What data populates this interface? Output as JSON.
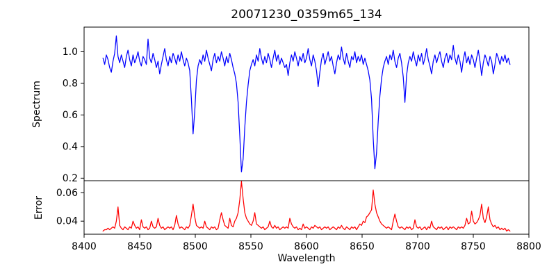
{
  "figure": {
    "background": "#ffffff",
    "text_color": "#000000"
  },
  "chart_data": {
    "type": "line",
    "title": "20071230_0359m65_134",
    "xlabel": "Wavelength",
    "grid": false,
    "legend": "none",
    "xlim": [
      8400,
      8800
    ],
    "xticks": [
      8400,
      8450,
      8500,
      8550,
      8600,
      8650,
      8700,
      8750,
      8800
    ],
    "xtick_labels": [
      "8400",
      "8450",
      "8500",
      "8550",
      "8600",
      "8650",
      "8700",
      "8750",
      "8800"
    ],
    "x_start": 8417,
    "x_step": 1.5,
    "panels": [
      {
        "name": "spectrum",
        "ylabel": "Spectrum",
        "ylim": [
          0.184,
          1.156
        ],
        "yticks": [
          0.2,
          0.4,
          0.6,
          0.8,
          1.0
        ],
        "ytick_labels": [
          "0.2",
          "0.4",
          "0.6",
          "0.8",
          "1.0"
        ],
        "color": "#0000ff",
        "features": "absorption lines near 8498, 8542, 8611, 8662, 8688; continuum ~0.95",
        "values": [
          0.96,
          0.92,
          0.98,
          0.95,
          0.9,
          0.87,
          0.94,
          0.99,
          1.1,
          0.97,
          0.93,
          0.98,
          0.94,
          0.9,
          0.97,
          1.01,
          0.95,
          0.91,
          0.98,
          0.93,
          0.96,
          1.0,
          0.94,
          0.91,
          0.97,
          0.95,
          0.92,
          1.08,
          0.96,
          0.93,
          0.99,
          0.95,
          0.9,
          0.94,
          0.86,
          0.92,
          0.97,
          1.02,
          0.95,
          0.91,
          0.97,
          0.93,
          0.99,
          0.96,
          0.92,
          0.98,
          0.94,
          1.0,
          0.95,
          0.91,
          0.96,
          0.93,
          0.88,
          0.7,
          0.48,
          0.62,
          0.82,
          0.91,
          0.95,
          0.92,
          0.98,
          0.94,
          1.01,
          0.96,
          0.92,
          0.88,
          0.95,
          0.99,
          0.93,
          0.97,
          0.94,
          1.0,
          0.96,
          0.91,
          0.97,
          0.93,
          0.99,
          0.95,
          0.9,
          0.86,
          0.8,
          0.68,
          0.47,
          0.24,
          0.32,
          0.52,
          0.68,
          0.79,
          0.88,
          0.92,
          0.95,
          0.91,
          0.98,
          0.94,
          1.02,
          0.96,
          0.92,
          0.97,
          0.93,
          0.99,
          0.95,
          0.9,
          0.96,
          1.01,
          0.94,
          0.98,
          0.92,
          0.96,
          0.93,
          0.9,
          0.92,
          0.85,
          0.93,
          0.98,
          0.94,
          1.0,
          0.96,
          0.91,
          0.97,
          0.94,
          0.99,
          0.93,
          0.96,
          1.02,
          0.95,
          0.91,
          0.98,
          0.94,
          0.88,
          0.78,
          0.87,
          0.95,
          0.99,
          0.92,
          0.96,
          1.0,
          0.94,
          0.97,
          0.91,
          0.86,
          0.93,
          0.98,
          0.95,
          1.03,
          0.96,
          0.92,
          0.99,
          0.94,
          0.9,
          0.97,
          0.95,
          1.0,
          0.93,
          0.97,
          0.94,
          0.98,
          0.92,
          0.96,
          0.92,
          0.88,
          0.82,
          0.7,
          0.45,
          0.26,
          0.36,
          0.56,
          0.72,
          0.83,
          0.9,
          0.94,
          0.97,
          0.92,
          0.98,
          0.95,
          1.01,
          0.94,
          0.9,
          0.96,
          0.99,
          0.93,
          0.84,
          0.68,
          0.85,
          0.93,
          0.97,
          0.94,
          1.0,
          0.95,
          0.91,
          0.98,
          0.94,
          0.99,
          0.92,
          0.96,
          1.02,
          0.95,
          0.91,
          0.86,
          0.94,
          0.98,
          0.93,
          0.97,
          1.0,
          0.94,
          0.9,
          0.96,
          0.99,
          0.93,
          0.98,
          0.95,
          1.04,
          0.96,
          0.92,
          0.98,
          0.94,
          0.87,
          0.95,
          1.0,
          0.93,
          0.97,
          0.92,
          0.98,
          0.95,
          0.9,
          0.96,
          1.01,
          0.94,
          0.85,
          0.93,
          0.98,
          0.95,
          0.91,
          0.97,
          0.94,
          0.86,
          0.92,
          0.99,
          0.96,
          0.92,
          0.97,
          0.94,
          0.98,
          0.93,
          0.96,
          0.92
        ]
      },
      {
        "name": "error",
        "ylabel": "Error",
        "ylim": [
          0.0308,
          0.0685
        ],
        "yticks": [
          0.04,
          0.06
        ],
        "ytick_labels": [
          "0.04",
          "0.06"
        ],
        "color": "#ff0000",
        "features": "baseline ~0.035; peaks near 8430, 8498, 8541 (0.068), 8660 (0.062), 8750-8764",
        "values": [
          0.033,
          0.034,
          0.034,
          0.035,
          0.034,
          0.035,
          0.036,
          0.035,
          0.04,
          0.05,
          0.037,
          0.035,
          0.034,
          0.036,
          0.035,
          0.034,
          0.036,
          0.035,
          0.04,
          0.037,
          0.035,
          0.036,
          0.034,
          0.041,
          0.036,
          0.035,
          0.036,
          0.034,
          0.035,
          0.04,
          0.036,
          0.035,
          0.036,
          0.042,
          0.037,
          0.035,
          0.036,
          0.034,
          0.035,
          0.036,
          0.035,
          0.036,
          0.034,
          0.037,
          0.044,
          0.038,
          0.035,
          0.036,
          0.035,
          0.034,
          0.036,
          0.035,
          0.037,
          0.044,
          0.052,
          0.043,
          0.037,
          0.036,
          0.035,
          0.036,
          0.035,
          0.04,
          0.036,
          0.035,
          0.034,
          0.036,
          0.035,
          0.036,
          0.034,
          0.035,
          0.041,
          0.046,
          0.041,
          0.037,
          0.036,
          0.035,
          0.042,
          0.037,
          0.036,
          0.04,
          0.042,
          0.046,
          0.055,
          0.068,
          0.056,
          0.046,
          0.042,
          0.04,
          0.038,
          0.037,
          0.04,
          0.046,
          0.038,
          0.037,
          0.036,
          0.035,
          0.036,
          0.034,
          0.035,
          0.036,
          0.04,
          0.036,
          0.035,
          0.037,
          0.035,
          0.036,
          0.034,
          0.035,
          0.036,
          0.035,
          0.036,
          0.035,
          0.042,
          0.038,
          0.036,
          0.035,
          0.036,
          0.034,
          0.035,
          0.034,
          0.038,
          0.035,
          0.036,
          0.035,
          0.034,
          0.036,
          0.035,
          0.037,
          0.036,
          0.035,
          0.036,
          0.034,
          0.035,
          0.036,
          0.035,
          0.036,
          0.034,
          0.035,
          0.036,
          0.035,
          0.034,
          0.036,
          0.035,
          0.037,
          0.035,
          0.034,
          0.036,
          0.035,
          0.034,
          0.036,
          0.035,
          0.036,
          0.034,
          0.036,
          0.038,
          0.037,
          0.04,
          0.039,
          0.043,
          0.044,
          0.046,
          0.048,
          0.062,
          0.052,
          0.046,
          0.043,
          0.04,
          0.038,
          0.037,
          0.036,
          0.035,
          0.036,
          0.035,
          0.034,
          0.04,
          0.045,
          0.04,
          0.036,
          0.035,
          0.036,
          0.035,
          0.034,
          0.036,
          0.035,
          0.036,
          0.034,
          0.035,
          0.041,
          0.036,
          0.035,
          0.036,
          0.034,
          0.035,
          0.036,
          0.034,
          0.036,
          0.035,
          0.04,
          0.036,
          0.035,
          0.034,
          0.036,
          0.035,
          0.036,
          0.034,
          0.035,
          0.036,
          0.034,
          0.036,
          0.035,
          0.036,
          0.035,
          0.034,
          0.036,
          0.035,
          0.036,
          0.035,
          0.037,
          0.042,
          0.038,
          0.039,
          0.047,
          0.04,
          0.038,
          0.039,
          0.041,
          0.044,
          0.052,
          0.042,
          0.039,
          0.043,
          0.05,
          0.041,
          0.038,
          0.036,
          0.037,
          0.035,
          0.036,
          0.034,
          0.035,
          0.034,
          0.035,
          0.033,
          0.034,
          0.033
        ]
      }
    ]
  }
}
